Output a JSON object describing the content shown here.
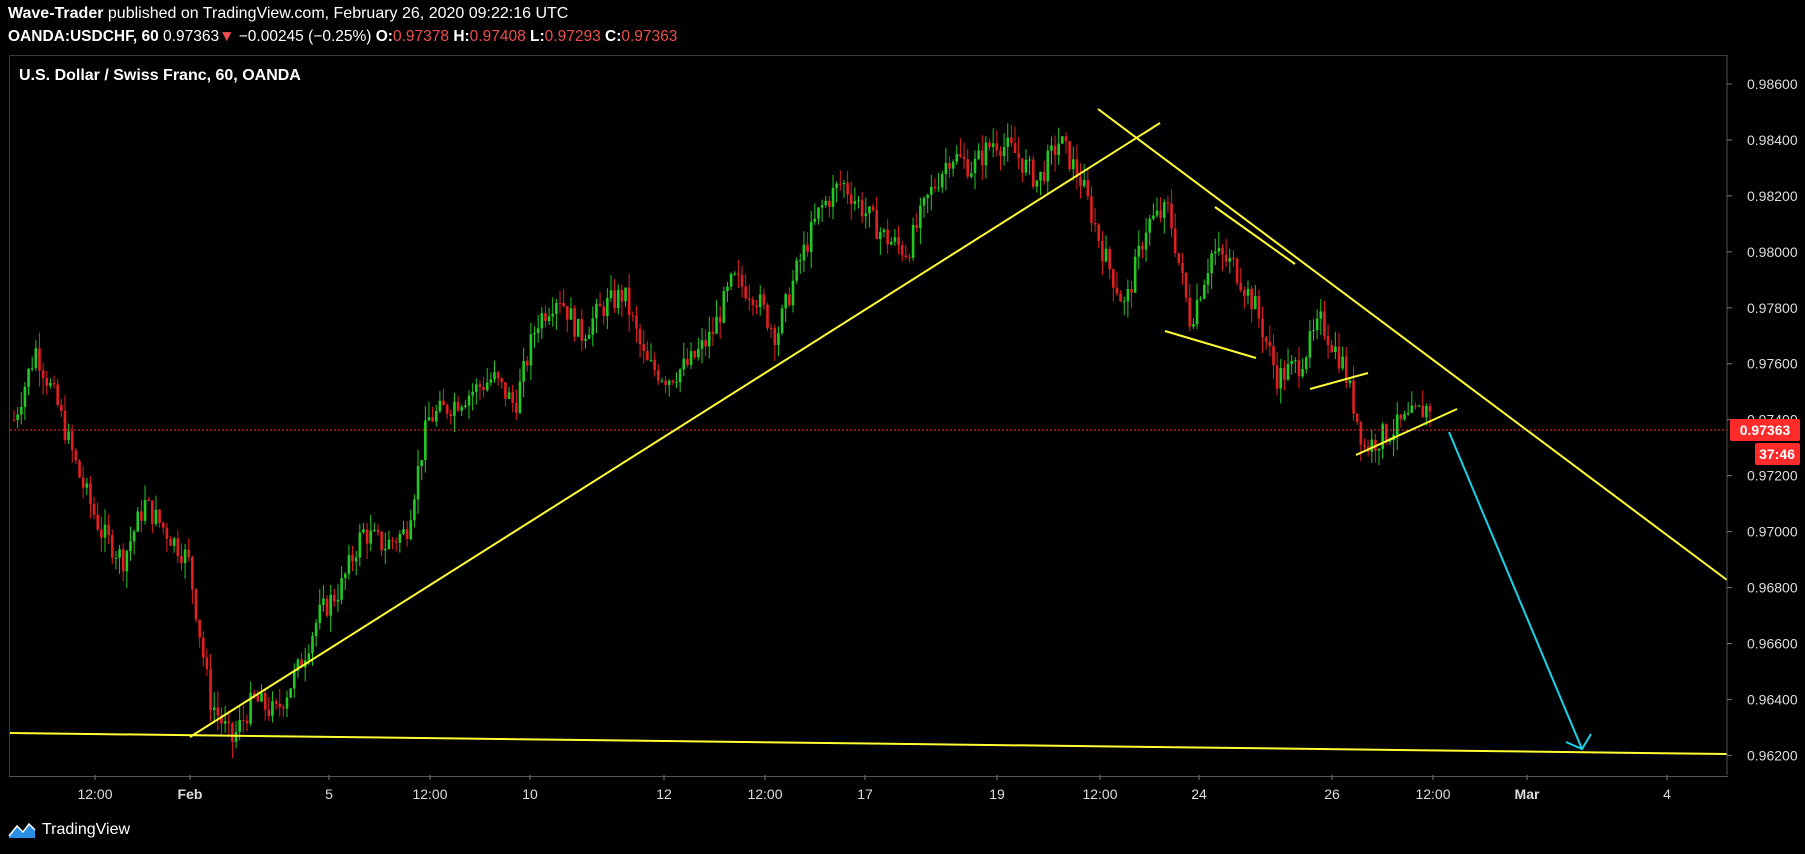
{
  "header": {
    "author": "Wave-Trader",
    "published": "published on TradingView.com, February 26, 2020 09:22:16 UTC",
    "symbol": "OANDA:USDCHF, 60",
    "last": "0.97363",
    "change_arrow": "▼",
    "change": "−0.00245 (−0.25%)",
    "o_label": "O:",
    "o": "0.97378",
    "h_label": "H:",
    "h": "0.97408",
    "l_label": "L:",
    "l": "0.97293",
    "c_label": "C:",
    "c": "0.97363"
  },
  "chart_title": "U.S. Dollar / Swiss Franc, 60, OANDA",
  "footer": {
    "brand": "TradingView",
    "logo_icon": "tradingview-logo-icon"
  },
  "colors": {
    "up": "#22c922",
    "down": "#e02020",
    "trendline": "#ffff33",
    "arrow": "#19d3ea",
    "price_tag": "#ff2b2b"
  },
  "chart_data": {
    "type": "candlestick",
    "title": "U.S. Dollar / Swiss Franc, 60, OANDA",
    "y_ticks": [
      "0.98600",
      "0.98400",
      "0.98200",
      "0.98000",
      "0.97800",
      "0.97600",
      "0.97400",
      "0.97200",
      "0.97000",
      "0.96800",
      "0.96600",
      "0.96400",
      "0.96200"
    ],
    "x_ticks": [
      "12:00",
      "Feb",
      "5",
      "12:00",
      "10",
      "12",
      "12:00",
      "17",
      "19",
      "12:00",
      "24",
      "26",
      "12:00",
      "Mar",
      "4"
    ],
    "ylim": [
      0.9613,
      0.987
    ],
    "current_price": "0.97363",
    "countdown": "37:46",
    "price_path_approx": [
      0.974,
      0.9765,
      0.9745,
      0.972,
      0.97,
      0.969,
      0.971,
      0.97,
      0.969,
      0.964,
      0.9625,
      0.964,
      0.9635,
      0.965,
      0.967,
      0.968,
      0.97,
      0.9695,
      0.97,
      0.974,
      0.9745,
      0.975,
      0.9755,
      0.9745,
      0.9775,
      0.9785,
      0.977,
      0.978,
      0.9785,
      0.976,
      0.9755,
      0.976,
      0.977,
      0.979,
      0.9785,
      0.977,
      0.9795,
      0.9815,
      0.9825,
      0.9815,
      0.9805,
      0.98,
      0.982,
      0.9835,
      0.983,
      0.984,
      0.9835,
      0.9825,
      0.984,
      0.9825,
      0.98,
      0.978,
      0.981,
      0.9815,
      0.9775,
      0.98,
      0.9795,
      0.978,
      0.9755,
      0.976,
      0.9775,
      0.976,
      0.973,
      0.9735,
      0.974,
      0.9745
    ],
    "annotations": {
      "trendlines": [
        {
          "from": [
            "Feb",
            0.9626
          ],
          "to": [
            "20 12:00",
            0.9846
          ]
        },
        {
          "from": [
            "19 late",
            0.9848
          ],
          "to": [
            "Mar 4+",
            0.9681
          ]
        },
        {
          "from": [
            "Jan 30",
            0.9627
          ],
          "to": [
            "Mar 4+",
            0.962
          ]
        }
      ],
      "forecast_arrow": {
        "from": [
          0.9736
        ],
        "to": [
          0.9621
        ]
      }
    }
  }
}
